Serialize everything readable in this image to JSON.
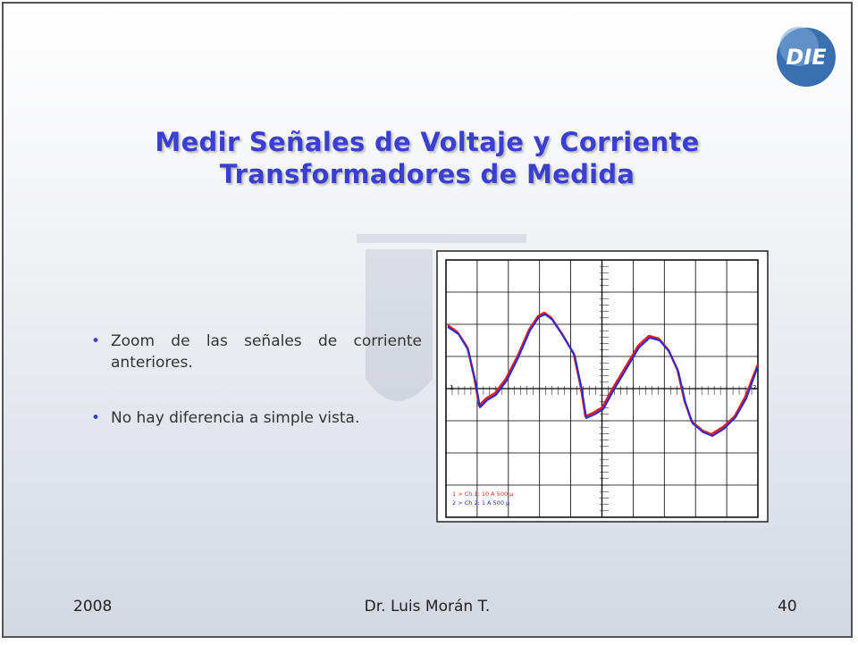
{
  "header": {
    "logo": "DIE",
    "title_lines": [
      "Medir Señales de Voltaje y Corriente",
      "Transformadores de Medida"
    ]
  },
  "bullets": [
    "Zoom de las señales de corriente anteriores.",
    "No hay diferencia a simple vista."
  ],
  "scope": {
    "marker_left": "1",
    "marker_right": "2",
    "legend": [
      "1 > Ch 1: 10 A 500 µ",
      "2 > Ch 2: 1 A 500 µ"
    ]
  },
  "footer": {
    "year": "2008",
    "author": "Dr. Luis Morán T.",
    "page": "40"
  }
}
